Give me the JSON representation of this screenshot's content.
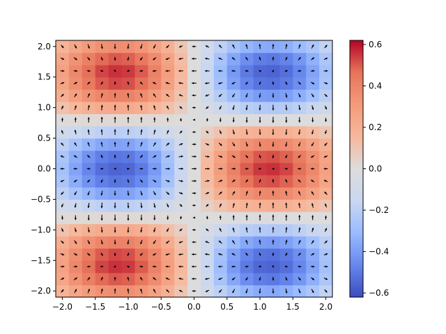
{
  "chart_data": {
    "type": "heatmap",
    "title": "",
    "xlabel": "",
    "ylabel": "",
    "xlim": [
      -2.1,
      2.1
    ],
    "ylim": [
      -2.1,
      2.1
    ],
    "grid": false,
    "xticks": [
      -2.0,
      -1.5,
      -1.0,
      -0.5,
      0.0,
      0.5,
      1.0,
      1.5,
      2.0
    ],
    "xtick_labels": [
      "−2.0",
      "−1.5",
      "−1.0",
      "−0.5",
      "0.0",
      "0.5",
      "1.0",
      "1.5",
      "2.0"
    ],
    "yticks": [
      -2.0,
      -1.5,
      -1.0,
      -0.5,
      0.0,
      0.5,
      1.0,
      1.5,
      2.0
    ],
    "ytick_labels": [
      "−2.0",
      "−1.5",
      "−1.0",
      "−0.5",
      "0.0",
      "0.5",
      "1.0",
      "1.5",
      "2.0"
    ],
    "colormap": "coolwarm",
    "colormap_stops": [
      "#3b4cc0",
      "#6788ee",
      "#9abbff",
      "#c9d7f0",
      "#dddcdc",
      "#f7b89c",
      "#f49a7b",
      "#e7745b",
      "#b40426"
    ],
    "colorbar": {
      "range": [
        -0.62,
        0.62
      ],
      "ticks": [
        -0.6,
        -0.4,
        -0.2,
        0.0,
        0.2,
        0.4,
        0.6
      ],
      "tick_labels": [
        "−0.6",
        "−0.4",
        "−0.2",
        "0.0",
        "0.2",
        "0.4",
        "0.6"
      ]
    },
    "grid_x": [
      -2.0,
      -1.8,
      -1.6,
      -1.4,
      -1.2,
      -1.0,
      -0.8,
      -0.6,
      -0.4,
      -0.2,
      0.0,
      0.2,
      0.4,
      0.6,
      0.8,
      1.0,
      1.2,
      1.4,
      1.6,
      1.8,
      2.0
    ],
    "grid_y": [
      -2.0,
      -1.8,
      -1.6,
      -1.4,
      -1.2,
      -1.0,
      -0.8,
      -0.6,
      -0.4,
      -0.2,
      0.0,
      0.2,
      0.4,
      0.6,
      0.8,
      1.0,
      1.2,
      1.4,
      1.6,
      1.8,
      2.0
    ],
    "field": "value = sin(x) * cos(2y) * exp(-x^2/8) with +- 0.62 extremes; arrows show the gradient direction of the field",
    "overlay": "quiver"
  }
}
